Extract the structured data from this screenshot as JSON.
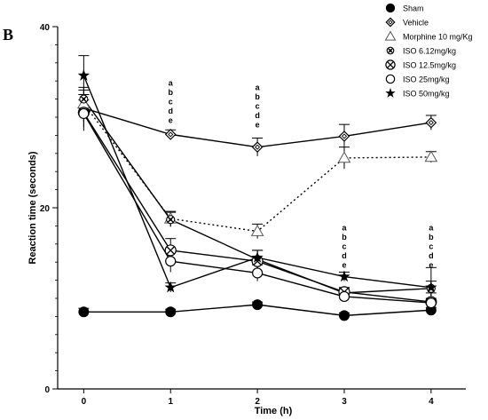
{
  "panel_label": "B",
  "chart_data": {
    "type": "line",
    "xlabel": "Time (h)",
    "ylabel": "Reaction time (seconds)",
    "x": [
      0,
      1,
      2,
      3,
      4
    ],
    "xlim": [
      -0.3,
      4.4
    ],
    "ylim": [
      0,
      40
    ],
    "xticks": [
      "0",
      "1",
      "2",
      "3",
      "4"
    ],
    "yticks": [
      "0",
      "20",
      "40"
    ],
    "legend_position": "top-right",
    "grid": false,
    "series": [
      {
        "name": "Sham",
        "marker": "filled-circle",
        "line": "solid",
        "values": [
          8.5,
          8.5,
          9.3,
          8.1,
          8.7
        ],
        "err": [
          0.4,
          0.3,
          0.3,
          0.3,
          0.3
        ]
      },
      {
        "name": "Vehicle",
        "marker": "open-diamond",
        "line": "solid",
        "values": [
          31.0,
          28.1,
          26.7,
          27.9,
          29.4
        ],
        "err": [
          1.5,
          0.5,
          1.0,
          1.3,
          0.8
        ]
      },
      {
        "name": "Morphine 10 mg/Kg",
        "marker": "open-triangle",
        "line": "dotted",
        "values": [
          31.5,
          18.8,
          17.4,
          25.5,
          25.6
        ],
        "err": [
          1.5,
          0.8,
          0.8,
          1.2,
          0.6
        ]
      },
      {
        "name": "ISO 6.12mg/kg",
        "marker": "circle-plus",
        "line": "solid",
        "values": [
          32.0,
          18.7,
          14.3,
          10.6,
          11.1
        ],
        "err": [
          1.3,
          0.8,
          1.0,
          0.5,
          0.8
        ]
      },
      {
        "name": "ISO 12.5mg/kg",
        "marker": "circle-x",
        "line": "solid",
        "values": [
          30.5,
          15.3,
          14.1,
          10.7,
          9.6
        ],
        "err": [
          2.0,
          1.3,
          1.2,
          0.5,
          1.0
        ]
      },
      {
        "name": "ISO 25mg/kg",
        "marker": "open-circle",
        "line": "solid",
        "values": [
          30.4,
          14.1,
          12.8,
          10.2,
          9.5
        ],
        "err": [
          1.5,
          1.2,
          0.9,
          0.5,
          0.5
        ]
      },
      {
        "name": "ISO 50mg/kg",
        "marker": "star",
        "line": "solid",
        "values": [
          34.6,
          11.2,
          14.5,
          12.4,
          11.2
        ],
        "err": [
          2.2,
          0.5,
          0.8,
          0.5,
          2.2
        ]
      }
    ],
    "annotations": [
      {
        "x": 1,
        "y": 33.5,
        "letters": [
          "a",
          "b",
          "c",
          "d",
          "e"
        ]
      },
      {
        "x": 2,
        "y": 33.0,
        "letters": [
          "a",
          "b",
          "c",
          "d",
          "e"
        ]
      },
      {
        "x": 3,
        "y": 17.5,
        "letters": [
          "a",
          "b",
          "c",
          "d",
          "e"
        ]
      },
      {
        "x": 4,
        "y": 17.5,
        "letters": [
          "a",
          "b",
          "c",
          "d",
          "e"
        ]
      }
    ]
  }
}
